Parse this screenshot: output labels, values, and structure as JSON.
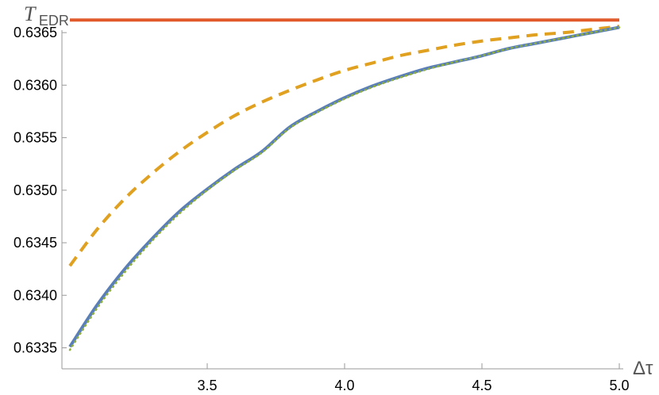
{
  "chart_data": {
    "type": "line",
    "title": "",
    "ylabel_main": "T",
    "ylabel_sub": "EDR",
    "xlabel": "Δτ",
    "xlim": [
      3.0,
      5.0
    ],
    "ylim": [
      0.6333,
      0.63675
    ],
    "x_ticks": [
      3.5,
      4.0,
      4.5,
      5.0
    ],
    "x_tick_labels": [
      "3.5",
      "4.0",
      "4.5",
      "5.0"
    ],
    "y_ticks": [
      0.6335,
      0.634,
      0.6345,
      0.635,
      0.6355,
      0.636,
      0.6365
    ],
    "y_tick_labels": [
      "0.6335",
      "0.6340",
      "0.6345",
      "0.6350",
      "0.6355",
      "0.6360",
      "0.6365"
    ],
    "grid": false,
    "series": [
      {
        "style": "solid",
        "color": "#e05a2b",
        "x": [
          3.0,
          5.0
        ],
        "y": [
          0.63662,
          0.63662
        ]
      },
      {
        "style": "dashed",
        "color": "#e0a020",
        "x": [
          3.0,
          3.1,
          3.2,
          3.3,
          3.4,
          3.5,
          3.6,
          3.7,
          3.8,
          3.9,
          4.0,
          4.1,
          4.2,
          4.3,
          4.4,
          4.5,
          4.6,
          4.7,
          4.8,
          4.9,
          5.0
        ],
        "y": [
          0.63428,
          0.63463,
          0.63492,
          0.63516,
          0.63537,
          0.63555,
          0.63571,
          0.63584,
          0.63595,
          0.63605,
          0.63614,
          0.63621,
          0.63628,
          0.63633,
          0.63638,
          0.63642,
          0.63645,
          0.63648,
          0.6365,
          0.63653,
          0.63656
        ]
      },
      {
        "style": "solid",
        "color": "#5a7fb8",
        "x": [
          3.0,
          3.1,
          3.2,
          3.3,
          3.4,
          3.5,
          3.6,
          3.7,
          3.8,
          3.9,
          4.0,
          4.1,
          4.2,
          4.3,
          4.4,
          4.5,
          4.6,
          4.7,
          4.8,
          4.9,
          5.0
        ],
        "y": [
          0.63351,
          0.63391,
          0.63425,
          0.63454,
          0.6348,
          0.63501,
          0.6352,
          0.63537,
          0.6356,
          0.63575,
          0.63588,
          0.63599,
          0.63608,
          0.63616,
          0.63622,
          0.63628,
          0.63635,
          0.6364,
          0.63645,
          0.6365,
          0.63655
        ]
      },
      {
        "style": "dotted",
        "color": "#8fb03a",
        "x": [
          3.0,
          3.1,
          3.2,
          3.3,
          3.4,
          3.5,
          3.6,
          3.7,
          3.8,
          3.9,
          4.0,
          4.1,
          4.2,
          4.3,
          4.4,
          4.5,
          4.6,
          4.7,
          4.8,
          4.9,
          5.0
        ],
        "y": [
          0.63348,
          0.63388,
          0.63422,
          0.63452,
          0.63478,
          0.635,
          0.63519,
          0.63536,
          0.63559,
          0.63574,
          0.63587,
          0.63598,
          0.63607,
          0.63615,
          0.63622,
          0.63628,
          0.63635,
          0.6364,
          0.63645,
          0.6365,
          0.63655
        ]
      }
    ]
  }
}
